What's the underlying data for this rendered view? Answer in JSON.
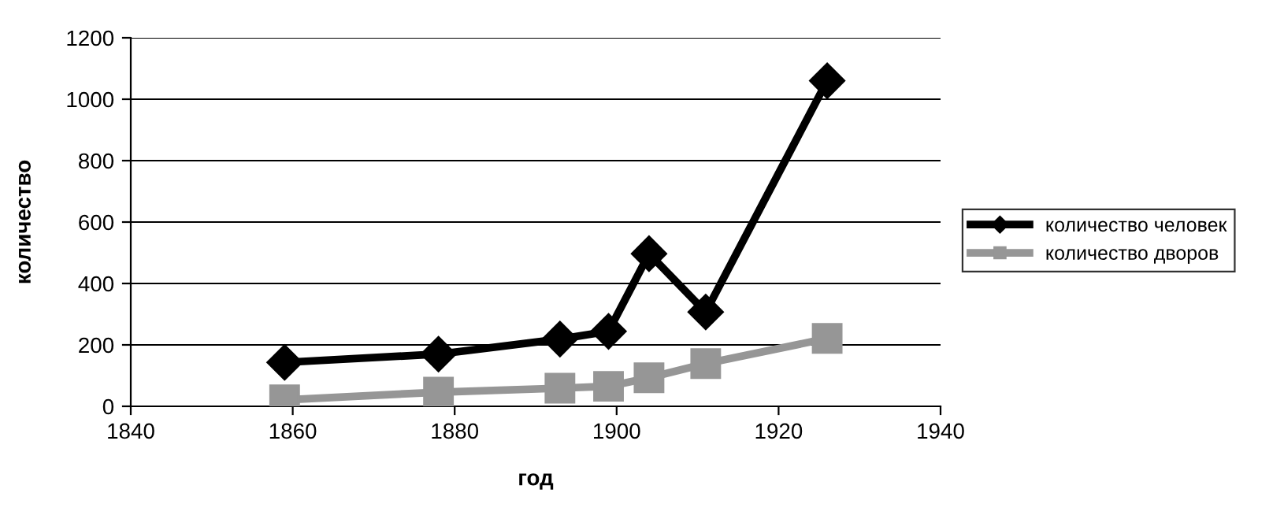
{
  "chart_data": {
    "type": "line",
    "xlabel": "год",
    "ylabel": "количество",
    "x": [
      1859,
      1878,
      1893,
      1899,
      1904,
      1911,
      1926
    ],
    "series": [
      {
        "name": "количество человек",
        "color": "#000000",
        "marker": "diamond",
        "values": [
          143,
          170,
          219,
          244,
          497,
          307,
          1060
        ]
      },
      {
        "name": "количество дворов",
        "color": "#969696",
        "marker": "square",
        "values": [
          21,
          46,
          59,
          65,
          93,
          139,
          221
        ]
      }
    ],
    "xlim": [
      1840,
      1940
    ],
    "xticks": [
      1840,
      1860,
      1880,
      1900,
      1920,
      1940
    ],
    "ylim": [
      0,
      1200
    ],
    "yticks": [
      0,
      200,
      400,
      600,
      800,
      1000,
      1200
    ],
    "grid": "y",
    "legend": "right",
    "line_style": "solid"
  }
}
